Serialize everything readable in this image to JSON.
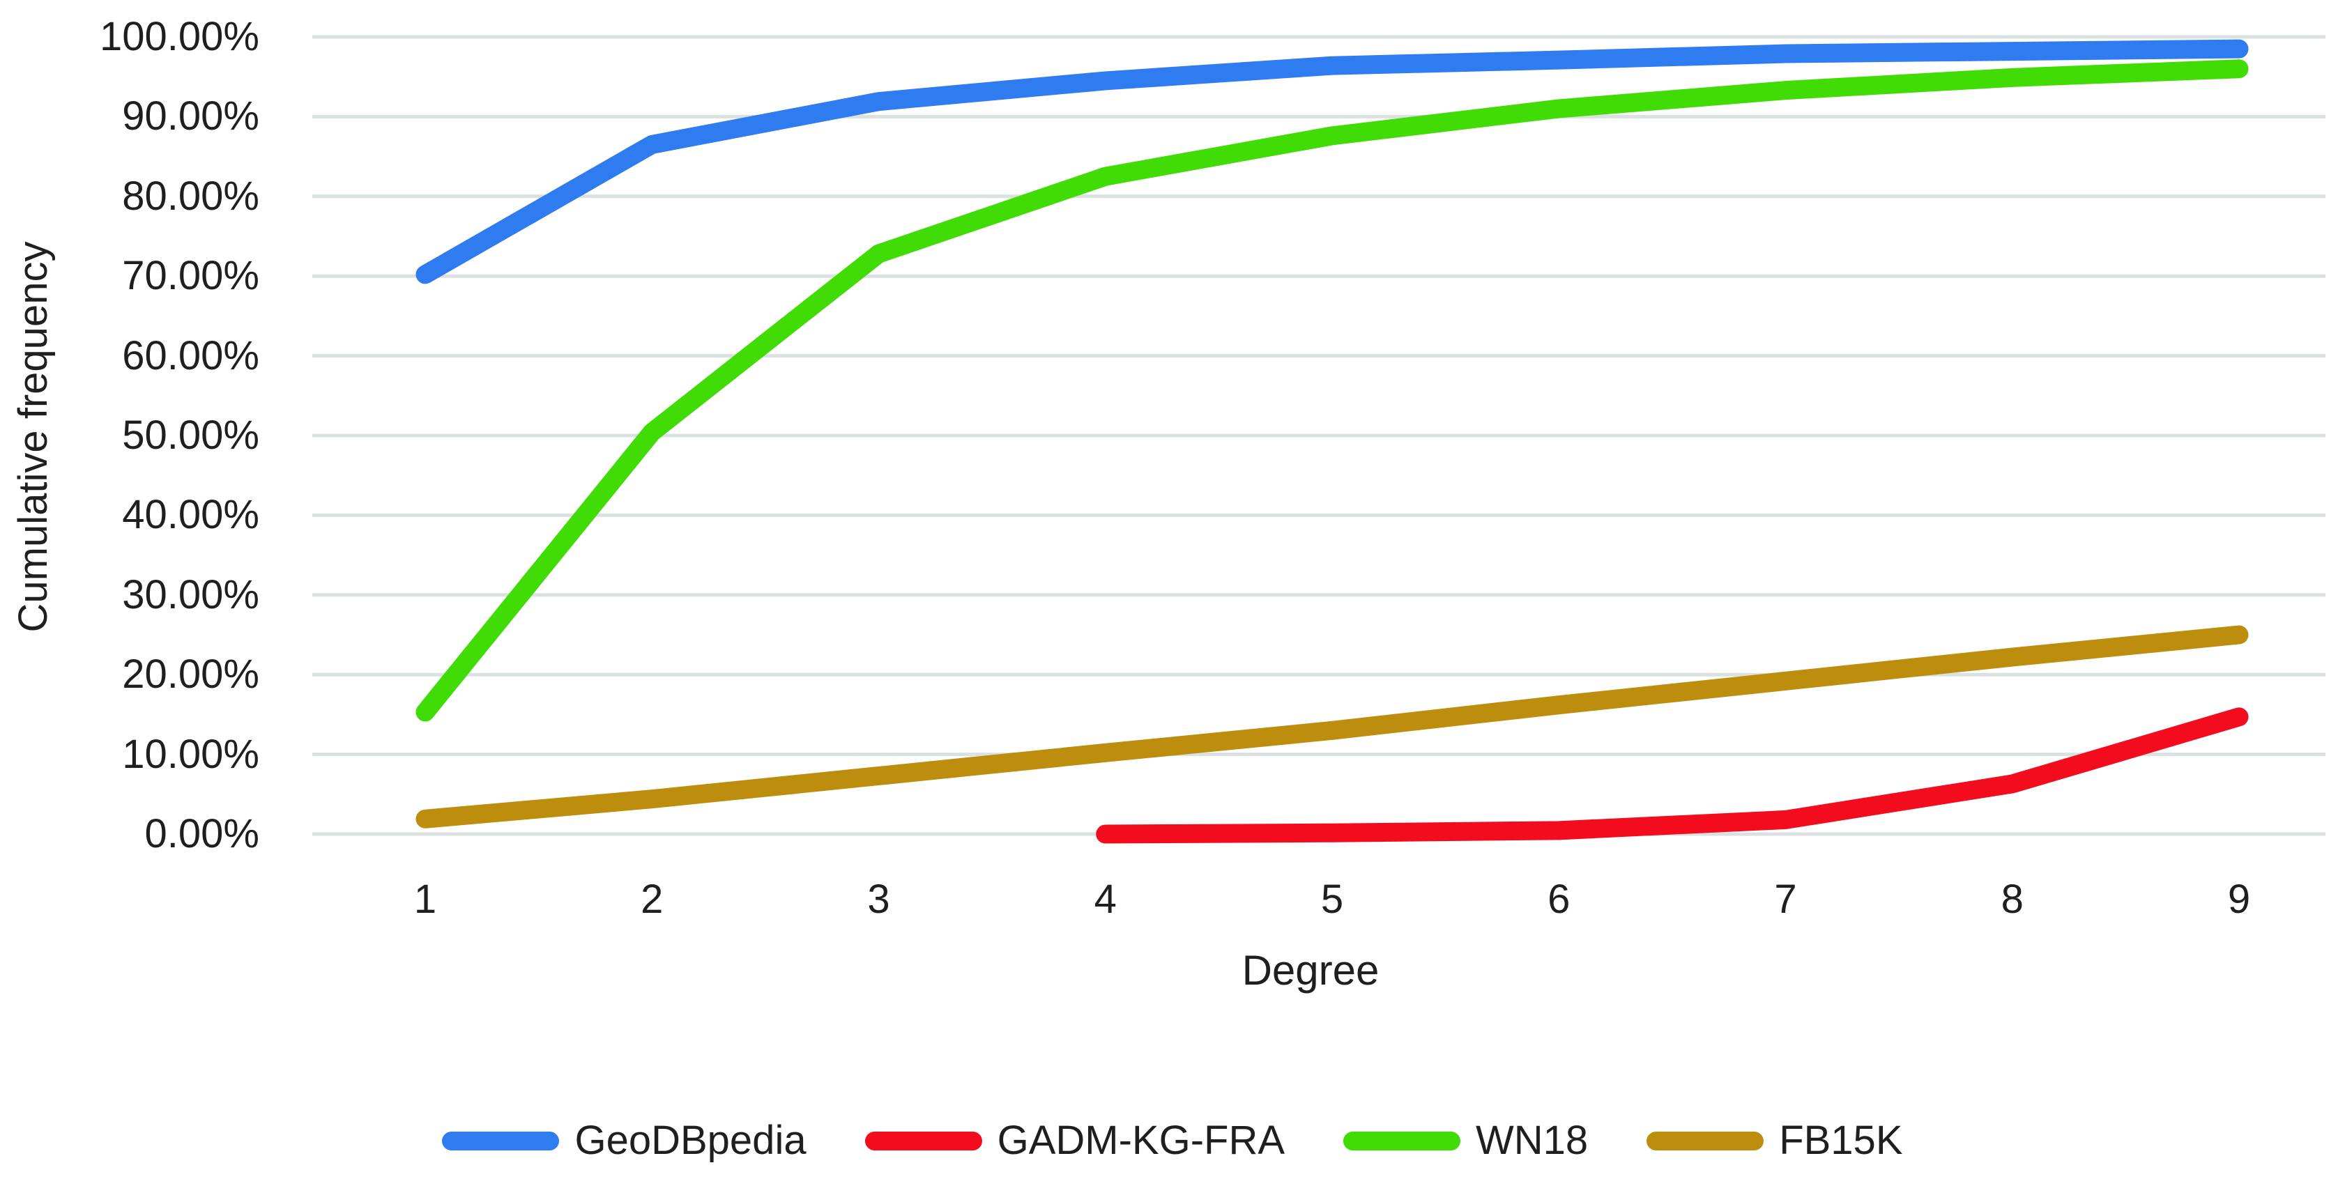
{
  "chart_data": {
    "type": "line",
    "title": "",
    "xlabel": "Degree",
    "ylabel": "Cumulative frequency",
    "x": [
      1,
      2,
      3,
      4,
      5,
      6,
      7,
      8,
      9
    ],
    "x_tick_labels": [
      "1",
      "2",
      "3",
      "4",
      "5",
      "6",
      "7",
      "8",
      "9"
    ],
    "y_tick_labels": [
      "100.00%",
      "90.00%",
      "80.00%",
      "70.00%",
      "60.00%",
      "50.00%",
      "40.00%",
      "30.00%",
      "20.00%",
      "10.00%",
      "0.00%"
    ],
    "ylim": [
      0,
      100
    ],
    "y_tick_step": 10,
    "grid": "horizontal",
    "gridline_color": "#DBE0E0",
    "text_color": "#1f1f1f",
    "legend_position": "bottom",
    "series": [
      {
        "name": "GeoDBpedia",
        "color": "#2F7BF0",
        "values": [
          70.2,
          86.5,
          91.9,
          94.5,
          96.4,
          97.1,
          97.9,
          98.2,
          98.5
        ]
      },
      {
        "name": "GADM-KG-FRA",
        "color": "#F30B1E",
        "values": [
          null,
          null,
          null,
          0.0,
          0.15,
          0.45,
          1.8,
          6.3,
          14.7
        ]
      },
      {
        "name": "WN18",
        "color": "#41DC05",
        "values": [
          15.3,
          50.4,
          72.8,
          82.5,
          87.6,
          91.0,
          93.3,
          94.9,
          96.0
        ]
      },
      {
        "name": "FB15K",
        "color": "#BD8E0E",
        "values": [
          1.9,
          4.4,
          7.3,
          10.2,
          13.0,
          16.2,
          19.2,
          22.2,
          25.0
        ]
      }
    ]
  }
}
